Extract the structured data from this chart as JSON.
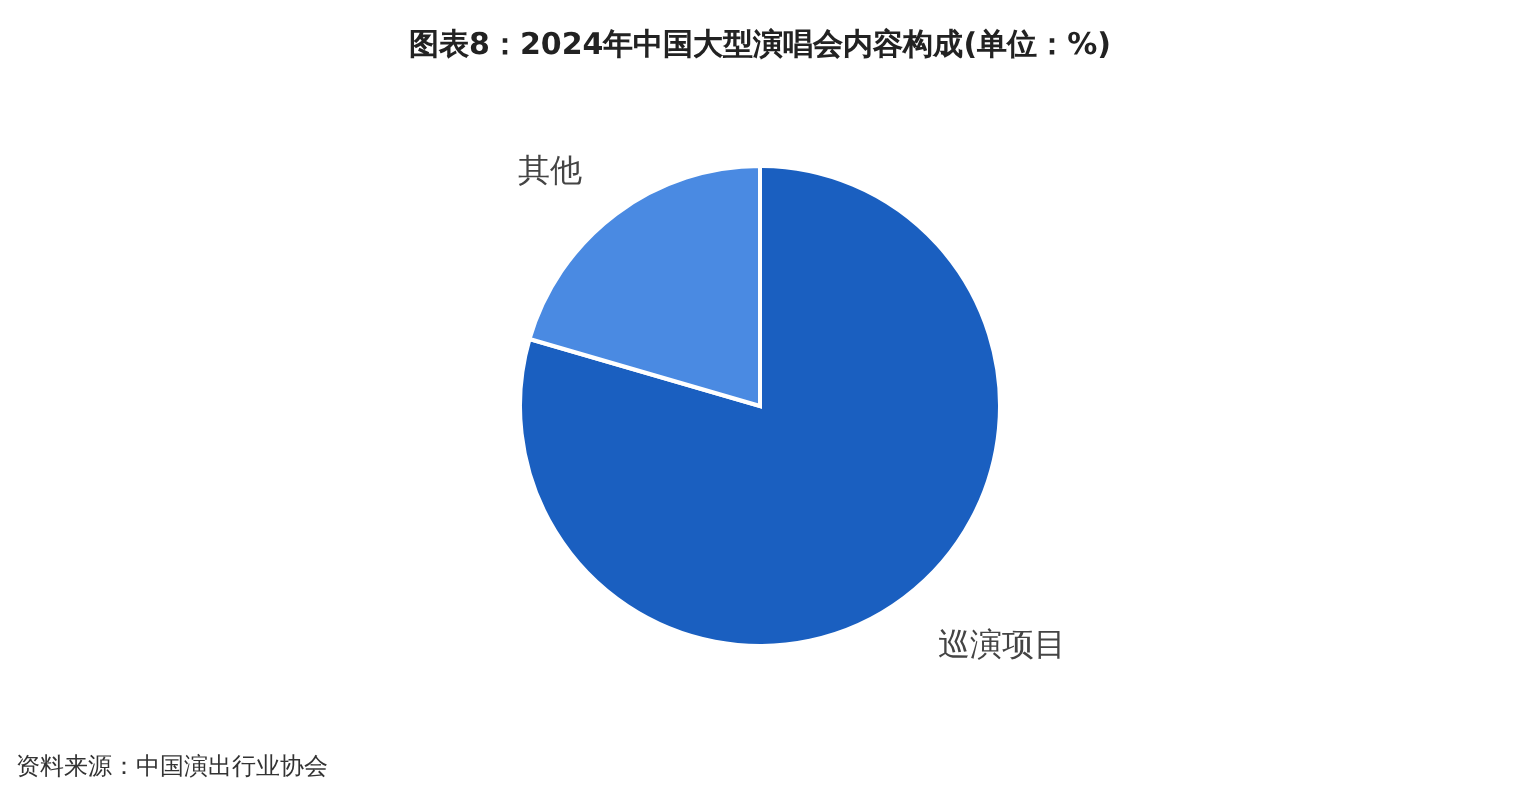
{
  "chart_data": {
    "type": "pie",
    "title": "图表8：2024年中国大型演唱会内容构成(单位：%)",
    "categories": [
      "巡演项目",
      "其他"
    ],
    "values": [
      79.5,
      20.5
    ],
    "colors": [
      "#1a5fc0",
      "#4a8ae2"
    ],
    "annotations": [
      "资料来源：中国演出行业协会"
    ]
  }
}
